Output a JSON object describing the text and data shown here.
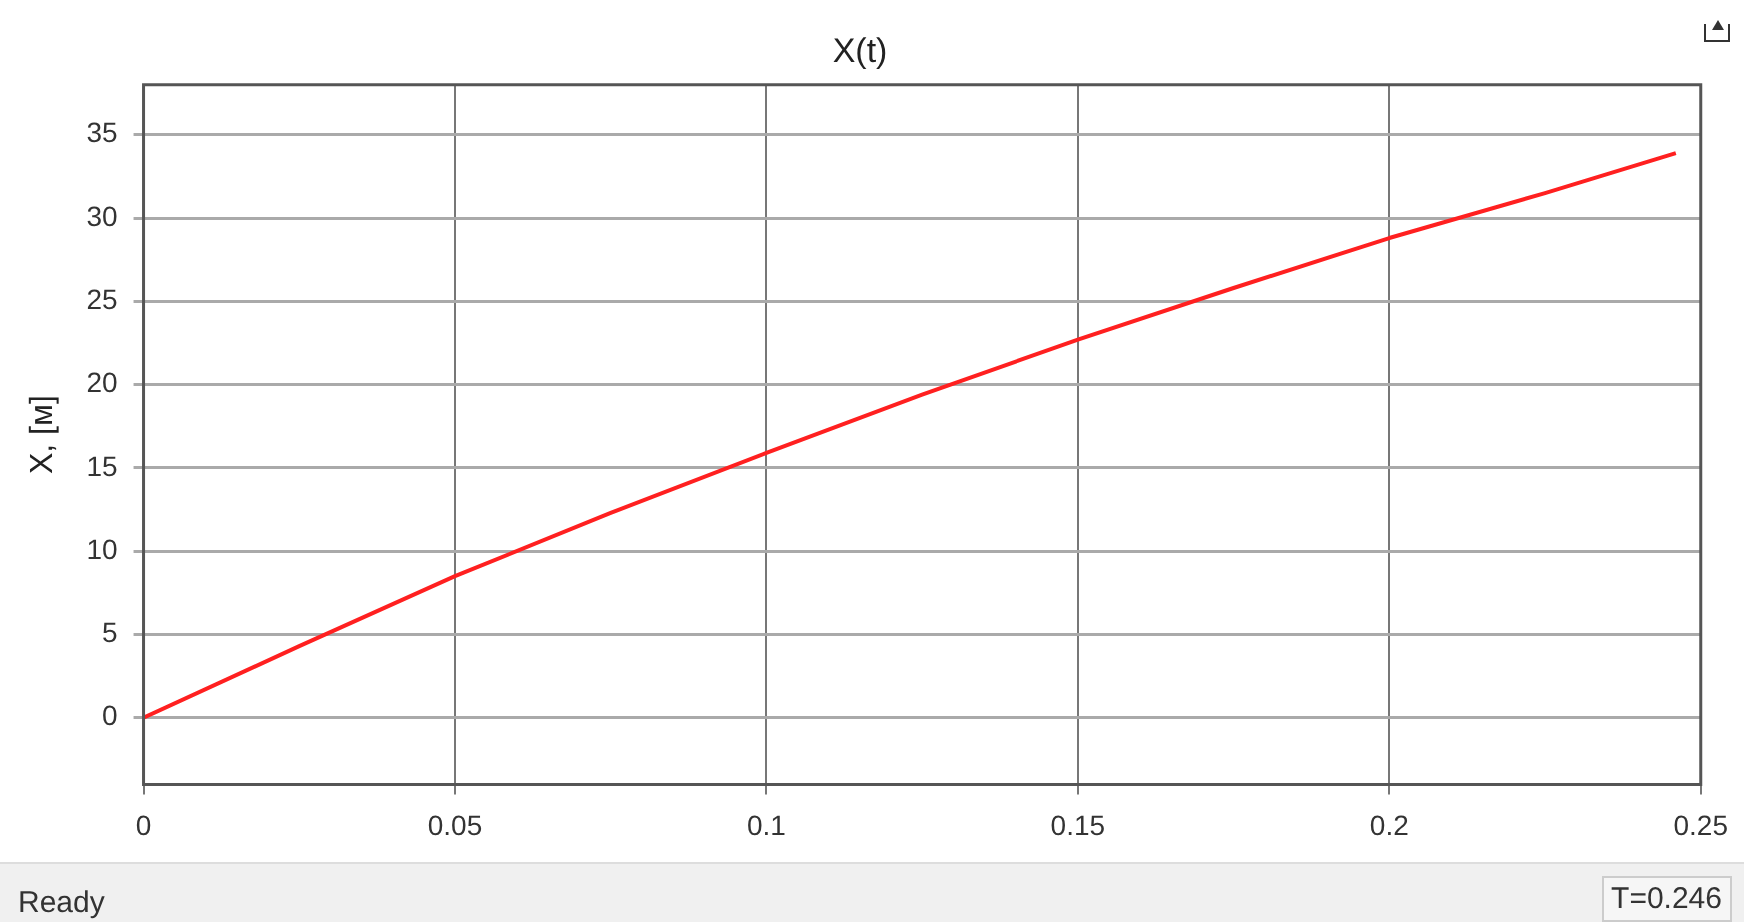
{
  "chart_data": {
    "type": "line",
    "title": "X(t)",
    "ylabel": "X, [м]",
    "xlim": [
      0,
      0.25
    ],
    "xticks": [
      0,
      0.05,
      0.1,
      0.15,
      0.2,
      0.25
    ],
    "ylim": [
      -4,
      38
    ],
    "yticks": [
      0,
      5,
      10,
      15,
      20,
      25,
      30,
      35
    ],
    "grid": true,
    "marker": "none",
    "line_style": "solid",
    "series": [
      {
        "color": "#ff2020",
        "x": [
          0,
          0.025,
          0.05,
          0.075,
          0.1,
          0.125,
          0.15,
          0.175,
          0.2,
          0.225,
          0.246
        ],
        "values": [
          0,
          4.3,
          8.5,
          12.3,
          15.9,
          19.4,
          22.7,
          25.8,
          28.8,
          31.5,
          33.9
        ]
      }
    ],
    "annotations": [
      "Ready",
      "T=0.246"
    ]
  }
}
